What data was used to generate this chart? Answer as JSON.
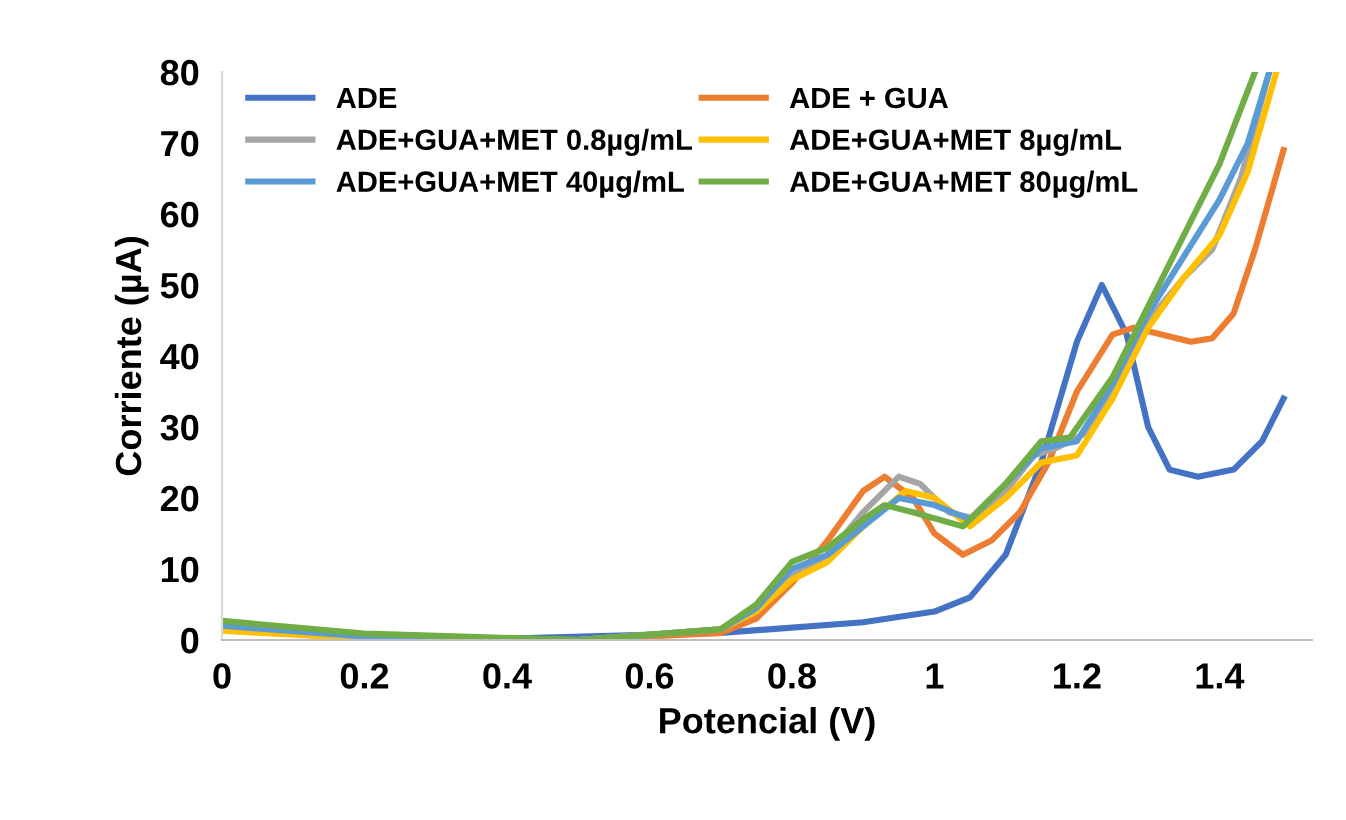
{
  "chart_data": {
    "type": "line",
    "xlabel": "Potencial (V)",
    "ylabel": "Corriente (µA)",
    "xlim": [
      0,
      1.53
    ],
    "ylim": [
      0,
      80
    ],
    "xticks": [
      0,
      0.2,
      0.4,
      0.6,
      0.8,
      1,
      1.2,
      1.4
    ],
    "yticks": [
      0,
      10,
      20,
      30,
      40,
      50,
      60,
      70,
      80
    ],
    "grid": false,
    "legend": "top left",
    "marker": "none",
    "line_style": "solid",
    "series": [
      {
        "name": "ADE",
        "color": "#4472c4",
        "x": [
          0,
          0.2,
          0.4,
          0.7,
          0.9,
          1.0,
          1.05,
          1.1,
          1.15,
          1.2,
          1.235,
          1.27,
          1.3,
          1.33,
          1.37,
          1.42,
          1.46,
          1.49
        ],
        "values": [
          1.5,
          0.5,
          0.2,
          1,
          2.5,
          4,
          6,
          12,
          25,
          42,
          50,
          43,
          30,
          24,
          23,
          24,
          28,
          34
        ]
      },
      {
        "name": "ADE + GUA",
        "color": "#ed7d31",
        "x": [
          0,
          0.2,
          0.5,
          0.7,
          0.75,
          0.8,
          0.85,
          0.9,
          0.93,
          0.97,
          1.0,
          1.04,
          1.08,
          1.12,
          1.16,
          1.2,
          1.25,
          1.28,
          1.32,
          1.36,
          1.39,
          1.42,
          1.45,
          1.49
        ],
        "values": [
          1.5,
          0.3,
          0,
          1,
          3,
          8,
          14,
          21,
          23,
          20,
          15,
          12,
          14,
          18,
          25,
          35,
          43,
          44,
          43,
          42,
          42.5,
          46,
          55,
          69
        ]
      },
      {
        "name": "ADE+GUA+MET 0.8µg/mL",
        "color": "#a5a5a5",
        "x": [
          0,
          0.2,
          0.5,
          0.7,
          0.75,
          0.8,
          0.85,
          0.9,
          0.95,
          0.98,
          1.02,
          1.06,
          1.1,
          1.14,
          1.17,
          1.21,
          1.25,
          1.3,
          1.35,
          1.39,
          1.43,
          1.47
        ],
        "values": [
          2,
          0.5,
          0,
          1.5,
          4,
          9,
          12,
          18,
          23,
          22,
          18,
          17,
          21,
          26,
          27,
          29,
          35,
          45,
          51,
          55,
          65,
          80
        ]
      },
      {
        "name": "ADE+GUA+MET 8µg/mL",
        "color": "#ffc000",
        "x": [
          0,
          0.2,
          0.5,
          0.7,
          0.75,
          0.8,
          0.85,
          0.9,
          0.96,
          1.0,
          1.05,
          1.1,
          1.15,
          1.2,
          1.25,
          1.3,
          1.35,
          1.4,
          1.44,
          1.48
        ],
        "values": [
          1.3,
          0.2,
          0,
          1.5,
          4,
          8.5,
          11,
          16,
          21,
          20,
          16,
          20,
          25,
          26,
          34,
          44,
          51,
          57,
          66,
          80
        ]
      },
      {
        "name": "ADE+GUA+MET 40µg/mL",
        "color": "#5b9bd5",
        "x": [
          0,
          0.2,
          0.5,
          0.7,
          0.75,
          0.8,
          0.85,
          0.9,
          0.95,
          1.0,
          1.05,
          1.1,
          1.15,
          1.2,
          1.25,
          1.3,
          1.35,
          1.4,
          1.44,
          1.47
        ],
        "values": [
          2,
          0.5,
          0,
          1.5,
          4.5,
          10,
          12,
          16,
          20,
          19,
          17,
          22,
          27,
          28,
          36,
          46,
          54,
          62,
          70,
          80
        ]
      },
      {
        "name": "ADE+GUA+MET 80µg/mL",
        "color": "#70ad47",
        "x": [
          0,
          0.2,
          0.5,
          0.7,
          0.75,
          0.8,
          0.85,
          0.9,
          0.93,
          0.97,
          1.04,
          1.1,
          1.15,
          1.19,
          1.25,
          1.3,
          1.35,
          1.4,
          1.45
        ],
        "values": [
          2.7,
          0.9,
          0,
          1.5,
          5,
          11,
          13,
          17,
          19,
          18,
          16,
          22,
          28,
          28.5,
          37,
          47,
          57,
          67,
          80
        ]
      }
    ]
  }
}
